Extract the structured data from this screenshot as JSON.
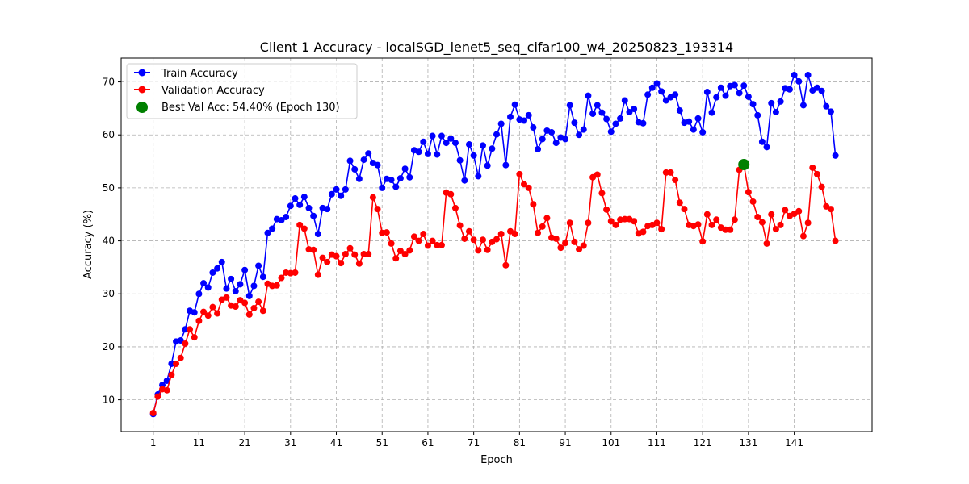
{
  "chart_data": {
    "type": "line",
    "title": "Client 1 Accuracy - localSGD_lenet5_seq_cifar100_w4_20250823_193314",
    "xlabel": "Epoch",
    "ylabel": "Accuracy (%)",
    "xlim": [
      -6,
      158
    ],
    "ylim": [
      4,
      74.5
    ],
    "xticks": [
      1,
      11,
      21,
      31,
      41,
      51,
      61,
      71,
      81,
      91,
      101,
      111,
      121,
      131,
      141
    ],
    "yticks": [
      10,
      20,
      30,
      40,
      50,
      60,
      70
    ],
    "grid": true,
    "legend_position": "top-left",
    "x": [
      1,
      2,
      3,
      4,
      5,
      6,
      7,
      8,
      9,
      10,
      11,
      12,
      13,
      14,
      15,
      16,
      17,
      18,
      19,
      20,
      21,
      22,
      23,
      24,
      25,
      26,
      27,
      28,
      29,
      30,
      31,
      32,
      33,
      34,
      35,
      36,
      37,
      38,
      39,
      40,
      41,
      42,
      43,
      44,
      45,
      46,
      47,
      48,
      49,
      50,
      51,
      52,
      53,
      54,
      55,
      56,
      57,
      58,
      59,
      60,
      61,
      62,
      63,
      64,
      65,
      66,
      67,
      68,
      69,
      70,
      71,
      72,
      73,
      74,
      75,
      76,
      77,
      78,
      79,
      80,
      81,
      82,
      83,
      84,
      85,
      86,
      87,
      88,
      89,
      90,
      91,
      92,
      93,
      94,
      95,
      96,
      97,
      98,
      99,
      100,
      101,
      102,
      103,
      104,
      105,
      106,
      107,
      108,
      109,
      110,
      111,
      112,
      113,
      114,
      115,
      116,
      117,
      118,
      119,
      120,
      121,
      122,
      123,
      124,
      125,
      126,
      127,
      128,
      129,
      130,
      131,
      132,
      133,
      134,
      135,
      136,
      137,
      138,
      139,
      140,
      141,
      142,
      143,
      144,
      145,
      146,
      147,
      148,
      149,
      150
    ],
    "series": [
      {
        "name": "Train Accuracy",
        "color": "#0000ff",
        "values": [
          7.3,
          11.0,
          12.8,
          13.6,
          16.8,
          21.0,
          21.2,
          23.3,
          26.8,
          26.5,
          30.0,
          32.0,
          31.2,
          34.0,
          34.8,
          36.0,
          31.0,
          32.8,
          30.5,
          31.8,
          34.5,
          29.6,
          31.5,
          35.3,
          33.2,
          41.5,
          42.3,
          44.1,
          43.9,
          44.5,
          46.6,
          48.0,
          46.8,
          48.3,
          46.2,
          44.7,
          41.3,
          46.2,
          46.0,
          48.8,
          49.7,
          48.5,
          49.7,
          55.1,
          53.5,
          51.7,
          55.3,
          56.5,
          54.7,
          54.3,
          50.0,
          51.7,
          51.5,
          50.2,
          51.8,
          53.6,
          52.0,
          57.1,
          56.8,
          58.7,
          56.4,
          59.8,
          56.3,
          59.8,
          58.5,
          59.3,
          58.5,
          55.2,
          51.4,
          58.2,
          56.1,
          52.2,
          58.0,
          54.2,
          57.4,
          60.1,
          62.1,
          54.3,
          63.4,
          65.7,
          62.9,
          62.7,
          63.7,
          61.4,
          57.3,
          59.2,
          60.8,
          60.5,
          58.5,
          59.5,
          59.2,
          65.6,
          62.3,
          60.0,
          61.0,
          67.4,
          64.0,
          65.6,
          64.2,
          63.0,
          60.6,
          62.1,
          63.1,
          66.5,
          64.3,
          64.9,
          62.4,
          62.2,
          67.6,
          68.9,
          69.7,
          68.2,
          66.5,
          67.1,
          67.6,
          64.6,
          62.3,
          62.5,
          61.0,
          63.1,
          60.5,
          68.1,
          64.2,
          67.1,
          68.9,
          67.4,
          69.2,
          69.4,
          67.9,
          69.3,
          67.2,
          65.8,
          63.7,
          58.7,
          57.7,
          66.0,
          64.3,
          66.3,
          68.8,
          68.6,
          71.3,
          70.1,
          65.6,
          71.3,
          68.4,
          68.9,
          68.3,
          65.4,
          64.4,
          56.1
        ]
      },
      {
        "name": "Validation Accuracy",
        "color": "#ff0000",
        "values": [
          7.5,
          10.6,
          12.0,
          11.8,
          14.7,
          16.8,
          17.9,
          20.6,
          23.3,
          21.8,
          24.9,
          26.6,
          25.9,
          27.5,
          26.3,
          28.9,
          29.3,
          27.8,
          27.6,
          28.8,
          28.3,
          26.1,
          27.3,
          28.5,
          26.8,
          31.9,
          31.5,
          31.6,
          33.0,
          34.0,
          33.9,
          34.0,
          43.0,
          42.3,
          38.4,
          38.3,
          33.6,
          36.8,
          36.0,
          37.4,
          37.1,
          35.8,
          37.5,
          38.6,
          37.4,
          35.7,
          37.5,
          37.5,
          48.2,
          46.0,
          41.5,
          41.6,
          39.5,
          36.7,
          38.1,
          37.5,
          38.2,
          40.8,
          40.0,
          41.3,
          39.1,
          40.0,
          39.2,
          39.2,
          49.1,
          48.8,
          46.2,
          42.9,
          40.4,
          41.8,
          40.2,
          38.2,
          40.2,
          38.3,
          39.8,
          40.3,
          41.3,
          35.4,
          41.8,
          41.3,
          52.6,
          50.7,
          50.0,
          46.9,
          41.5,
          42.7,
          44.3,
          40.6,
          40.4,
          38.7,
          39.6,
          43.4,
          39.8,
          38.4,
          39.1,
          43.4,
          52.0,
          52.5,
          49.0,
          45.9,
          43.7,
          43.0,
          44.0,
          44.1,
          44.1,
          43.7,
          41.4,
          41.7,
          42.8,
          43.0,
          43.4,
          42.2,
          52.9,
          52.9,
          51.5,
          47.2,
          46.0,
          43.0,
          42.8,
          43.1,
          39.9,
          45.0,
          43.0,
          44.0,
          42.5,
          42.1,
          42.1,
          44.0,
          53.4,
          54.4,
          49.2,
          47.4,
          44.5,
          43.5,
          39.5,
          45.0,
          42.2,
          43.0,
          45.8,
          44.7,
          45.1,
          45.6,
          40.9,
          43.4,
          53.8,
          52.6,
          50.2,
          46.5,
          46.0,
          40.0
        ]
      }
    ],
    "best": {
      "label": "Best Val Acc: 54.40% (Epoch 130)",
      "x": 130,
      "y": 54.4,
      "color": "#008000"
    }
  }
}
